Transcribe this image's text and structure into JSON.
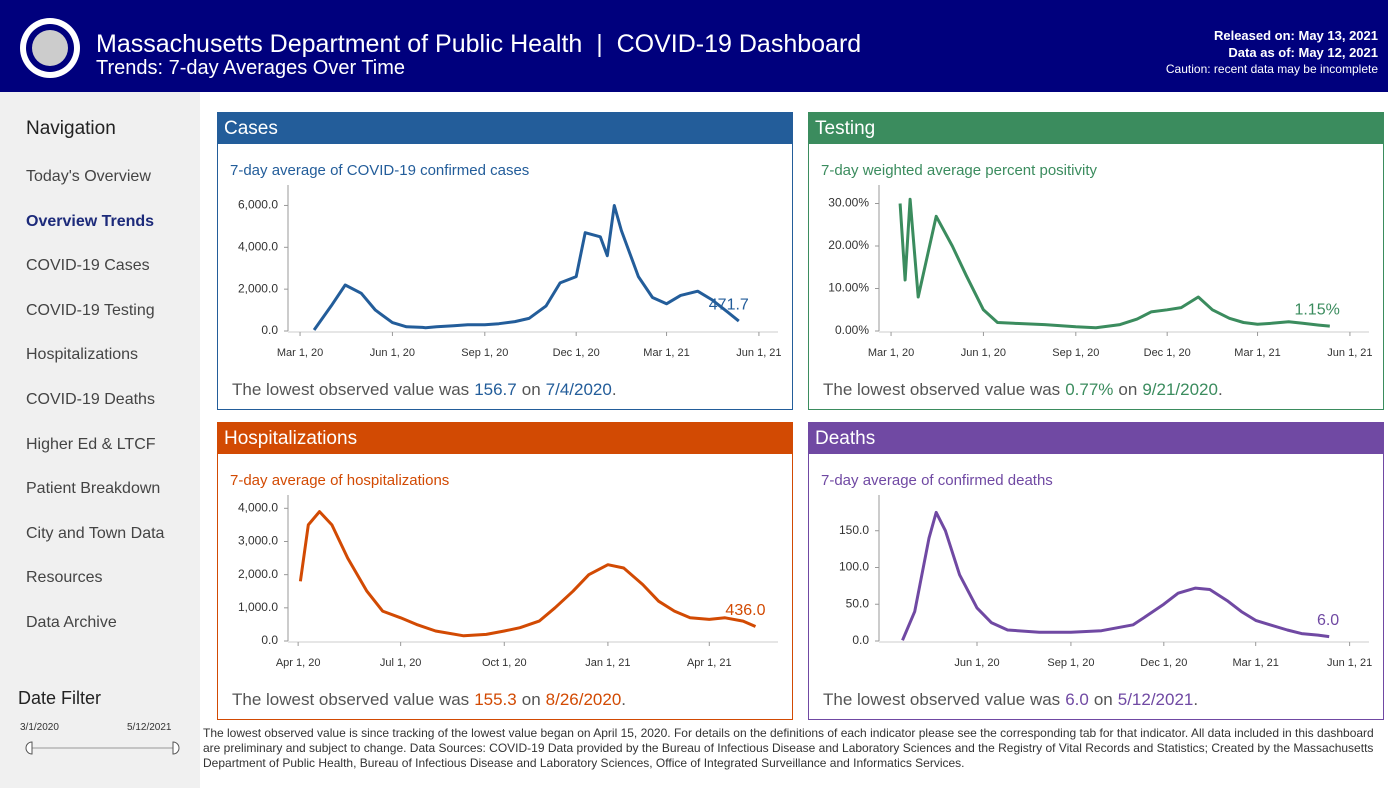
{
  "header": {
    "title": "Massachusetts Department of Public Health  |  COVID-19 Dashboard",
    "subtitle": "Trends: 7-day Averages Over Time",
    "released": "Released on: May 13, 2021",
    "data_as_of": "Data as of: May 12, 2021",
    "caution": "Caution: recent data may be incomplete"
  },
  "navigation": {
    "title": "Navigation",
    "items": [
      "Today's Overview",
      "Overview Trends",
      "COVID-19 Cases",
      "COVID-19 Testing",
      "Hospitalizations",
      "COVID-19 Deaths",
      "Higher Ed & LTCF",
      "Patient Breakdown",
      "City and Town Data",
      "Resources",
      "Data Archive"
    ],
    "active": 1
  },
  "date_filter": {
    "title": "Date Filter",
    "start": "3/1/2020",
    "end": "5/12/2021"
  },
  "footer": "The lowest observed value is since tracking of the lowest value began on April 15, 2020. For details on the definitions of each indicator please see the corresponding tab for that indicator. All data included in this dashboard are preliminary and subject to change. Data Sources: COVID-19 Data provided by the Bureau of Infectious Disease and Laboratory Sciences and the Registry of Vital Records and Statistics; Created by the Massachusetts Department of Public Health, Bureau of Infectious Disease and Laboratory Sciences, Office of Integrated Surveillance and Informatics Services.",
  "chart_data": [
    {
      "type": "line",
      "title": "Cases",
      "subtitle": "7-day average of COVID-19 confirmed cases",
      "color": "#235d9a",
      "x": [
        "2020-03-15",
        "2020-04-01",
        "2020-04-15",
        "2020-05-01",
        "2020-05-15",
        "2020-06-01",
        "2020-06-15",
        "2020-07-01",
        "2020-07-04",
        "2020-07-15",
        "2020-08-01",
        "2020-08-15",
        "2020-09-01",
        "2020-09-15",
        "2020-10-01",
        "2020-10-15",
        "2020-11-01",
        "2020-11-15",
        "2020-12-01",
        "2020-12-10",
        "2020-12-25",
        "2021-01-01",
        "2021-01-08",
        "2021-01-15",
        "2021-02-01",
        "2021-02-15",
        "2021-03-01",
        "2021-03-15",
        "2021-04-01",
        "2021-04-15",
        "2021-05-01",
        "2021-05-12"
      ],
      "values": [
        50,
        1200,
        2200,
        1800,
        1000,
        400,
        200,
        170,
        156.7,
        200,
        250,
        300,
        300,
        350,
        450,
        600,
        1200,
        2300,
        2600,
        4700,
        4500,
        3600,
        6000,
        4800,
        2600,
        1600,
        1300,
        1700,
        1900,
        1500,
        900,
        471.7
      ],
      "xlim": [
        "2020-02-18",
        "2021-06-20"
      ],
      "ylim": [
        0,
        6500
      ],
      "xticks": [
        {
          "value": "2020-03-01",
          "label": "Mar 1, 20"
        },
        {
          "value": "2020-06-01",
          "label": "Jun 1, 20"
        },
        {
          "value": "2020-09-01",
          "label": "Sep 1, 20"
        },
        {
          "value": "2020-12-01",
          "label": "Dec 1, 20"
        },
        {
          "value": "2021-03-01",
          "label": "Mar 1, 21"
        },
        {
          "value": "2021-06-01",
          "label": "Jun 1, 21"
        }
      ],
      "yticks": [
        {
          "value": 0,
          "label": "0.0"
        },
        {
          "value": 2000,
          "label": "2,000.0"
        },
        {
          "value": 4000,
          "label": "4,000.0"
        },
        {
          "value": 6000,
          "label": "6,000.0"
        }
      ],
      "annotation": {
        "x": "2021-05-12",
        "value": 471.7
      },
      "note": {
        "prefix": "The lowest observed value was",
        "value": 156.7,
        "on": "on",
        "date": "7/4/2020",
        "suffix": "."
      }
    },
    {
      "type": "line",
      "title": "Testing",
      "subtitle": "7-day weighted average percent positivity",
      "color": "#3b8c5e",
      "x": [
        "2020-03-10",
        "2020-03-15",
        "2020-03-20",
        "2020-03-28",
        "2020-04-15",
        "2020-05-01",
        "2020-05-15",
        "2020-06-01",
        "2020-06-15",
        "2020-07-01",
        "2020-08-01",
        "2020-09-01",
        "2020-09-21",
        "2020-10-15",
        "2020-11-01",
        "2020-11-15",
        "2020-12-01",
        "2020-12-15",
        "2021-01-01",
        "2021-01-15",
        "2021-02-01",
        "2021-02-15",
        "2021-03-01",
        "2021-03-15",
        "2021-04-01",
        "2021-04-15",
        "2021-05-01",
        "2021-05-12"
      ],
      "values": [
        30,
        12,
        31,
        8,
        27,
        20,
        13,
        5,
        2,
        1.8,
        1.5,
        1,
        0.77,
        1.5,
        2.8,
        4.5,
        5,
        5.5,
        8,
        5,
        3,
        2,
        1.6,
        1.8,
        2.2,
        1.8,
        1.4,
        1.15
      ],
      "xlim": [
        "2020-02-18",
        "2021-06-20"
      ],
      "ylim": [
        0,
        32
      ],
      "xticks": [
        {
          "value": "2020-03-01",
          "label": "Mar 1, 20"
        },
        {
          "value": "2020-06-01",
          "label": "Jun 1, 20"
        },
        {
          "value": "2020-09-01",
          "label": "Sep 1, 20"
        },
        {
          "value": "2020-12-01",
          "label": "Dec 1, 20"
        },
        {
          "value": "2021-03-01",
          "label": "Mar 1, 21"
        },
        {
          "value": "2021-06-01",
          "label": "Jun 1, 21"
        }
      ],
      "yticks": [
        {
          "value": 0,
          "label": "0.00%"
        },
        {
          "value": 10,
          "label": "10.00%"
        },
        {
          "value": 20,
          "label": "20.00%"
        },
        {
          "value": 30,
          "label": "30.00%"
        }
      ],
      "annotation": {
        "x": "2021-05-12",
        "value": 1.15,
        "label": "1.15%"
      },
      "note": {
        "prefix": "The lowest observed value was",
        "value": {
          "value": 0.77,
          "label": "0.77%"
        },
        "on": "on",
        "date": "9/21/2020",
        "suffix": "."
      }
    },
    {
      "type": "line",
      "title": "Hospitalizations",
      "subtitle": "7-day average of hospitalizations",
      "color": "#d24a03",
      "x": [
        "2020-04-03",
        "2020-04-10",
        "2020-04-20",
        "2020-05-01",
        "2020-05-15",
        "2020-06-01",
        "2020-06-15",
        "2020-07-01",
        "2020-07-15",
        "2020-08-01",
        "2020-08-26",
        "2020-09-15",
        "2020-10-01",
        "2020-10-15",
        "2020-11-01",
        "2020-11-15",
        "2020-12-01",
        "2020-12-15",
        "2021-01-01",
        "2021-01-15",
        "2021-02-01",
        "2021-02-15",
        "2021-03-01",
        "2021-03-15",
        "2021-04-01",
        "2021-04-15",
        "2021-05-01",
        "2021-05-12"
      ],
      "values": [
        1800,
        3500,
        3900,
        3500,
        2500,
        1500,
        900,
        700,
        500,
        300,
        155.3,
        200,
        300,
        400,
        600,
        1000,
        1500,
        2000,
        2300,
        2200,
        1700,
        1200,
        900,
        700,
        650,
        700,
        600,
        436
      ],
      "xlim": [
        "2020-03-23",
        "2021-06-01"
      ],
      "ylim": [
        0,
        4100
      ],
      "xticks": [
        {
          "value": "2020-04-01",
          "label": "Apr 1, 20"
        },
        {
          "value": "2020-07-01",
          "label": "Jul 1, 20"
        },
        {
          "value": "2020-10-01",
          "label": "Oct 1, 20"
        },
        {
          "value": "2021-01-01",
          "label": "Jan 1, 21"
        },
        {
          "value": "2021-04-01",
          "label": "Apr 1, 21"
        }
      ],
      "yticks": [
        {
          "value": 0,
          "label": "0.0"
        },
        {
          "value": 1000,
          "label": "1,000.0"
        },
        {
          "value": 2000,
          "label": "2,000.0"
        },
        {
          "value": 3000,
          "label": "3,000.0"
        },
        {
          "value": 4000,
          "label": "4,000.0"
        }
      ],
      "annotation": {
        "x": "2021-05-12",
        "value": 436,
        "label": "436.0"
      },
      "note": {
        "prefix": "The lowest observed value was",
        "value": 155.3,
        "on": "on",
        "date": "8/26/2020",
        "suffix": "."
      }
    },
    {
      "type": "line",
      "title": "Deaths",
      "subtitle": "7-day average of confirmed deaths",
      "color": "#7049a3",
      "x": [
        "2020-03-20",
        "2020-04-01",
        "2020-04-15",
        "2020-04-22",
        "2020-05-01",
        "2020-05-15",
        "2020-06-01",
        "2020-06-15",
        "2020-07-01",
        "2020-08-01",
        "2020-09-01",
        "2020-10-01",
        "2020-11-01",
        "2020-11-15",
        "2020-12-01",
        "2020-12-15",
        "2021-01-01",
        "2021-01-15",
        "2021-02-01",
        "2021-02-15",
        "2021-03-01",
        "2021-03-15",
        "2021-04-01",
        "2021-04-15",
        "2021-05-01",
        "2021-05-12"
      ],
      "values": [
        1,
        40,
        140,
        175,
        150,
        90,
        45,
        25,
        15,
        12,
        12,
        14,
        22,
        35,
        50,
        65,
        72,
        70,
        55,
        40,
        28,
        22,
        15,
        10,
        8,
        6
      ],
      "xlim": [
        "2020-02-26",
        "2021-06-20"
      ],
      "ylim": [
        0,
        185
      ],
      "xticks": [
        {
          "value": "2020-06-01",
          "label": "Jun 1, 20"
        },
        {
          "value": "2020-09-01",
          "label": "Sep 1, 20"
        },
        {
          "value": "2020-12-01",
          "label": "Dec 1, 20"
        },
        {
          "value": "2021-03-01",
          "label": "Mar 1, 21"
        },
        {
          "value": "2021-06-01",
          "label": "Jun 1, 21"
        }
      ],
      "yticks": [
        {
          "value": 0,
          "label": "0.0"
        },
        {
          "value": 50,
          "label": "50.0"
        },
        {
          "value": 100,
          "label": "100.0"
        },
        {
          "value": 150,
          "label": "150.0"
        }
      ],
      "annotation": {
        "x": "2021-05-12",
        "value": 6,
        "label": "6.0"
      },
      "note": {
        "prefix": "The lowest observed value was",
        "value": {
          "value": 6,
          "label": "6.0"
        },
        "on": "on",
        "date": "5/12/2021",
        "suffix": "."
      }
    }
  ]
}
